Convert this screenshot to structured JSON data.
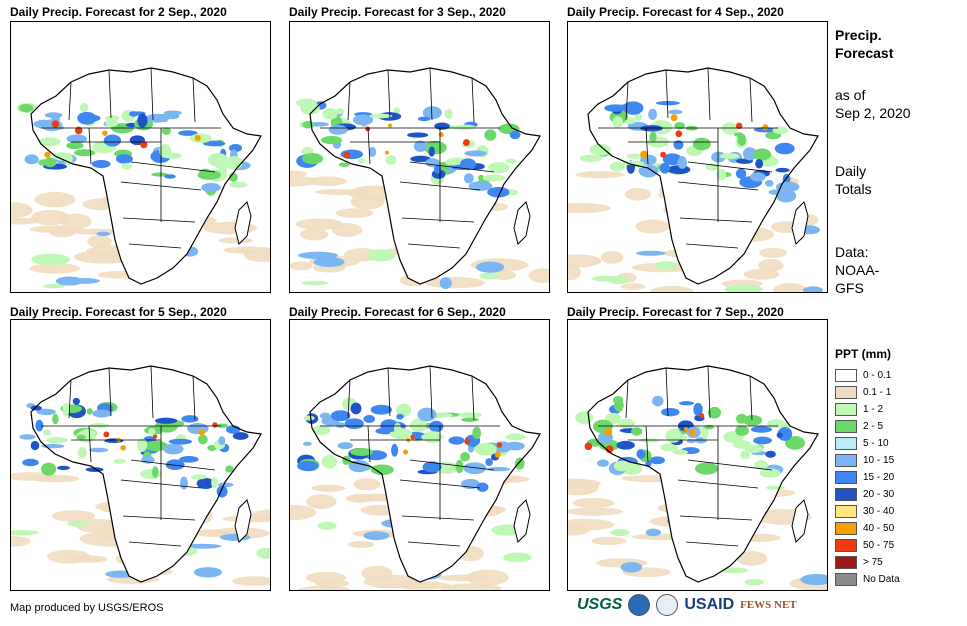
{
  "panels": [
    {
      "title": "Daily Precip. Forecast for 2 Sep., 2020"
    },
    {
      "title": "Daily Precip. Forecast for 3 Sep., 2020"
    },
    {
      "title": "Daily Precip. Forecast for 4 Sep., 2020"
    },
    {
      "title": "Daily Precip. Forecast for 5 Sep., 2020"
    },
    {
      "title": "Daily Precip. Forecast for 6 Sep., 2020"
    },
    {
      "title": "Daily Precip. Forecast for 7 Sep., 2020"
    }
  ],
  "sidebar": {
    "heading_line1": "Precip.",
    "heading_line2": "Forecast",
    "asof_line1": "as of",
    "asof_line2": "Sep 2, 2020",
    "totals_line1": "Daily",
    "totals_line2": "Totals",
    "data_line1": "Data:",
    "data_line2": "NOAA-",
    "data_line3": "GFS"
  },
  "legend": {
    "title": "PPT (mm)",
    "items": [
      {
        "label": "0 - 0.1",
        "color": "#ffffff"
      },
      {
        "label": "0.1 - 1",
        "color": "#f0dcc0"
      },
      {
        "label": "1 - 2",
        "color": "#bff7b4"
      },
      {
        "label": "2 - 5",
        "color": "#6bd869"
      },
      {
        "label": "5 - 10",
        "color": "#b9ecf4"
      },
      {
        "label": "10 - 15",
        "color": "#7cb6f2"
      },
      {
        "label": "15 - 20",
        "color": "#3e86f0"
      },
      {
        "label": "20 - 30",
        "color": "#1e54c8"
      },
      {
        "label": "30 - 40",
        "color": "#ffe680"
      },
      {
        "label": "40 - 50",
        "color": "#f4a000"
      },
      {
        "label": "50 - 75",
        "color": "#ee3b10"
      },
      {
        "label": "> 75",
        "color": "#a01818"
      },
      {
        "label": "No Data",
        "color": "#8c8c8c"
      }
    ]
  },
  "footer": {
    "credit": "Map produced by USGS/EROS"
  },
  "logos": {
    "usgs": "USGS",
    "usaid": "USAID",
    "fews": "FEWS NET"
  },
  "colors": {
    "border": "#000000",
    "land": "#ffffff"
  }
}
